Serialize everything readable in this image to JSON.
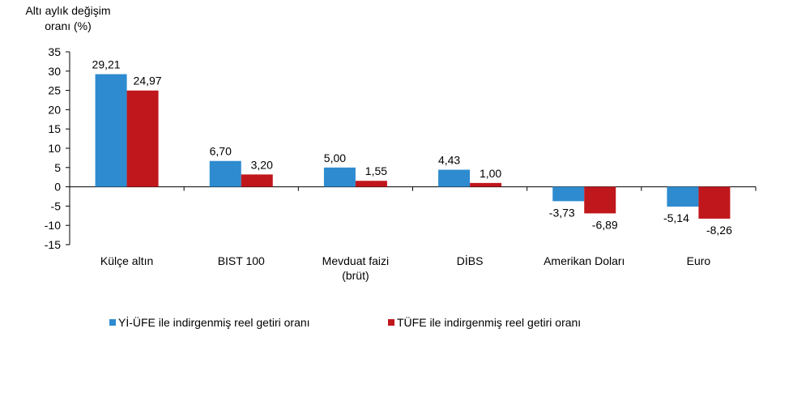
{
  "chart_data": {
    "type": "bar",
    "ylabel": "Altı aylık değişim oranı (%)",
    "ylabel_lines": [
      "Altı aylık değişim",
      "oranı (%)"
    ],
    "ylim": [
      -15,
      35
    ],
    "yticks": [
      35,
      30,
      25,
      20,
      15,
      10,
      5,
      0,
      -5,
      -10,
      -15
    ],
    "grid": false,
    "legend_position": "bottom",
    "categories": [
      "Külçe altın",
      "BIST 100",
      "Mevduat faizi (brüt)",
      "DİBS",
      "Amerikan Doları",
      "Euro"
    ],
    "category_lines": [
      [
        "Külçe altın"
      ],
      [
        "BIST 100"
      ],
      [
        "Mevduat faizi",
        "(brüt)"
      ],
      [
        "DİBS"
      ],
      [
        "Amerikan Doları"
      ],
      [
        "Euro"
      ]
    ],
    "series": [
      {
        "name": "Yİ-ÜFE ile indirgenmiş reel getiri oranı",
        "color": "#2e8bcf",
        "values": [
          29.21,
          6.7,
          5.0,
          4.43,
          -3.73,
          -5.14
        ],
        "labels": [
          "29,21",
          "6,70",
          "5,00",
          "4,43",
          "-3,73",
          "-5,14"
        ]
      },
      {
        "name": "TÜFE ile indirgenmiş reel getiri oranı",
        "color": "#c0171c",
        "values": [
          24.97,
          3.2,
          1.55,
          1.0,
          -6.89,
          -8.26
        ],
        "labels": [
          "24,97",
          "3,20",
          "1,55",
          "1,00",
          "-6,89",
          "-8,26"
        ]
      }
    ]
  }
}
